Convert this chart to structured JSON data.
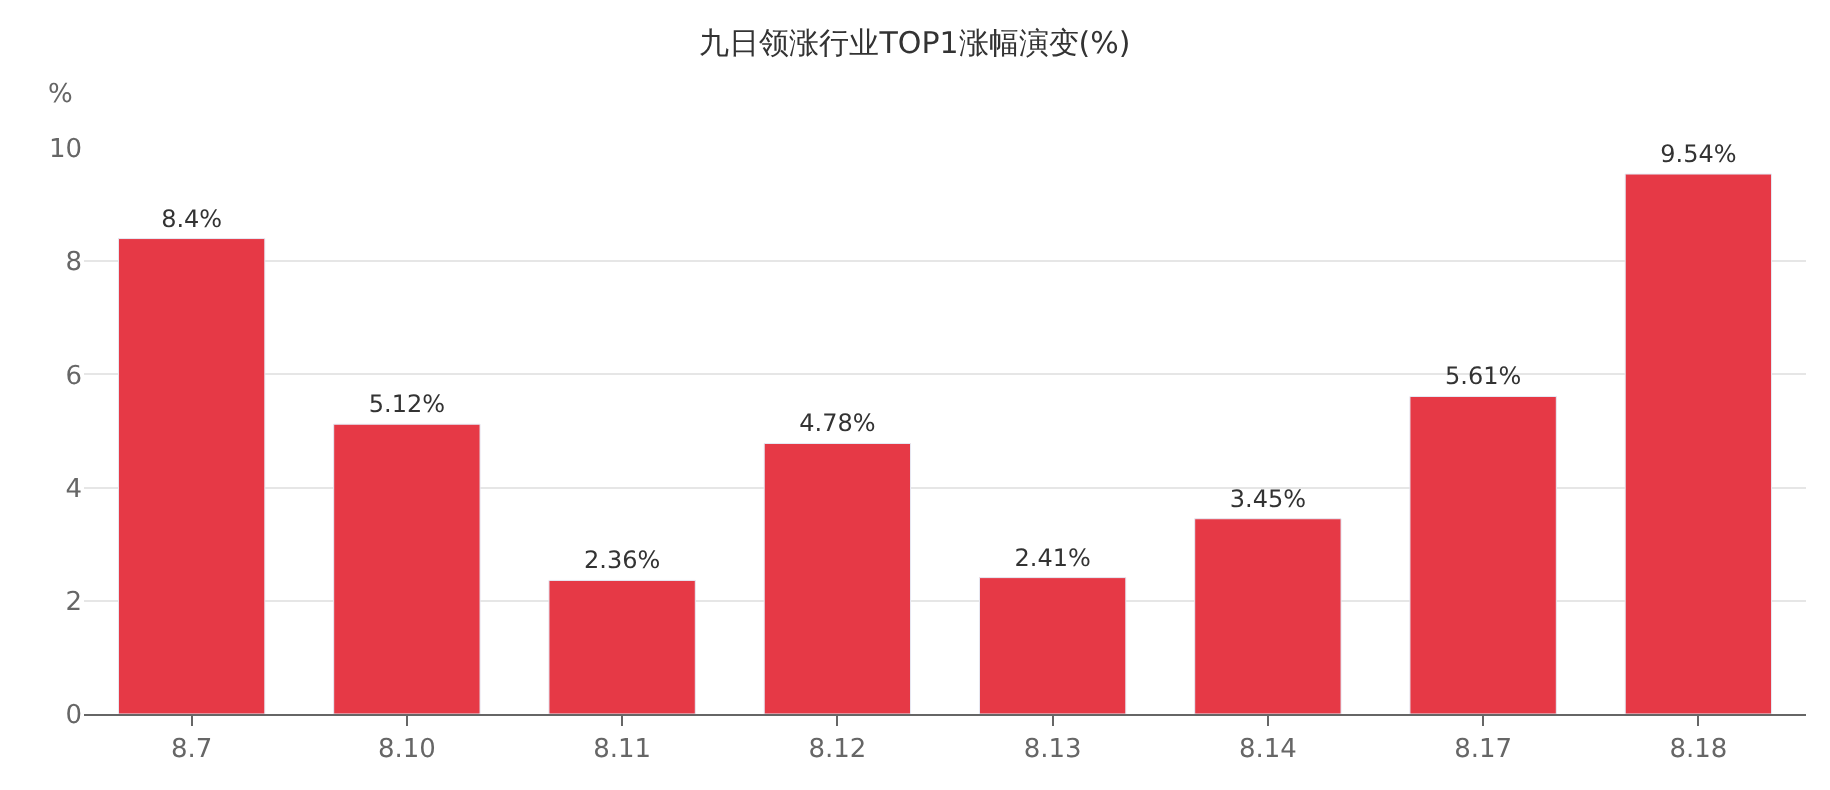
{
  "chart_data": {
    "type": "bar",
    "title": "九日领涨行业TOP1涨幅演变(%)",
    "ylabel": "%",
    "categories": [
      "8.7",
      "8.10",
      "8.11",
      "8.12",
      "8.13",
      "8.14",
      "8.17",
      "8.18"
    ],
    "values": [
      8.4,
      5.12,
      2.36,
      4.78,
      2.41,
      3.45,
      5.61,
      9.54
    ],
    "value_labels": [
      "8.4%",
      "5.12%",
      "2.36%",
      "4.78%",
      "2.41%",
      "3.45%",
      "5.61%",
      "9.54%"
    ],
    "color": "#e63946",
    "ylim": [
      0,
      10
    ],
    "yticks": [
      0,
      2,
      4,
      6,
      8,
      10
    ],
    "grid": "y"
  }
}
